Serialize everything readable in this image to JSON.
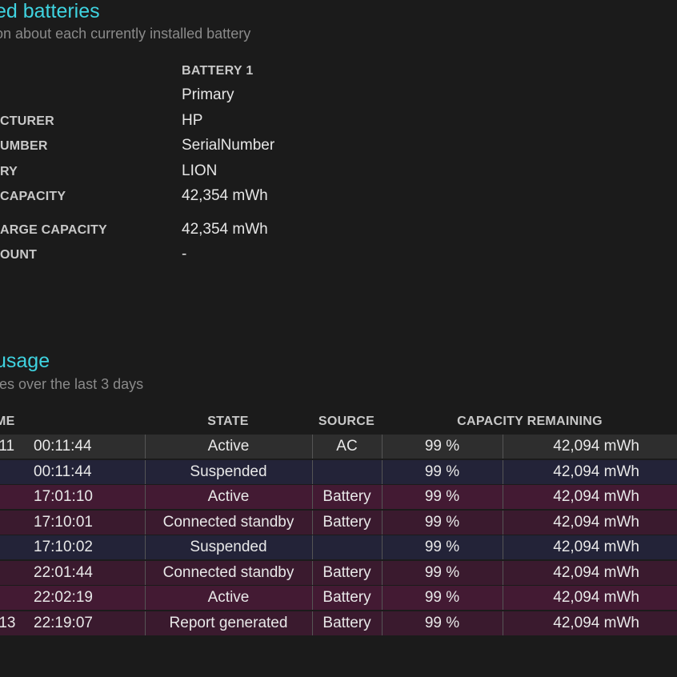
{
  "batteries_section": {
    "title": "ed batteries",
    "subtitle": "on about each currently installed battery"
  },
  "battery_info": {
    "column_header": "BATTERY 1",
    "rows": [
      {
        "label": "",
        "value": "Primary"
      },
      {
        "label": "CTURER",
        "value": "HP"
      },
      {
        "label": "UMBER",
        "value": "SerialNumber"
      },
      {
        "label": "RY",
        "value": "LION"
      },
      {
        "label": "CAPACITY",
        "value": "42,354 mWh"
      },
      {
        "label": "ARGE CAPACITY",
        "value": "42,354 mWh"
      },
      {
        "label": "OUNT",
        "value": "-"
      }
    ]
  },
  "usage_section": {
    "title": "usage",
    "subtitle": "tes over the last 3 days"
  },
  "usage_table": {
    "headers": {
      "time": "ME",
      "state": "STATE",
      "source": "SOURCE",
      "capacity": "CAPACITY REMAINING"
    },
    "rows": [
      {
        "date": "-11",
        "time": "00:11:44",
        "state": "Active",
        "source": "AC",
        "percent": "99 %",
        "mwh": "42,094 mWh",
        "kind": "active-ac"
      },
      {
        "date": "",
        "time": "00:11:44",
        "state": "Suspended",
        "source": "",
        "percent": "99 %",
        "mwh": "42,094 mWh",
        "kind": "suspended"
      },
      {
        "date": "",
        "time": "17:01:10",
        "state": "Active",
        "source": "Battery",
        "percent": "99 %",
        "mwh": "42,094 mWh",
        "kind": "battery"
      },
      {
        "date": "",
        "time": "17:10:01",
        "state": "Connected standby",
        "source": "Battery",
        "percent": "99 %",
        "mwh": "42,094 mWh",
        "kind": "battery-alt"
      },
      {
        "date": "",
        "time": "17:10:02",
        "state": "Suspended",
        "source": "",
        "percent": "99 %",
        "mwh": "42,094 mWh",
        "kind": "suspended"
      },
      {
        "date": "",
        "time": "22:01:44",
        "state": "Connected standby",
        "source": "Battery",
        "percent": "99 %",
        "mwh": "42,094 mWh",
        "kind": "battery-alt"
      },
      {
        "date": "",
        "time": "22:02:19",
        "state": "Active",
        "source": "Battery",
        "percent": "99 %",
        "mwh": "42,094 mWh",
        "kind": "battery"
      },
      {
        "date": "-13",
        "time": "22:19:07",
        "state": "Report generated",
        "source": "Battery",
        "percent": "99 %",
        "mwh": "42,094 mWh",
        "kind": "battery-alt"
      }
    ]
  },
  "colors": {
    "background": "#1b1b1b",
    "heading_accent": "#3fd3e0",
    "row_active_ac": "#2e2e2e",
    "row_suspended": "#232338",
    "row_battery": "#431a33"
  }
}
